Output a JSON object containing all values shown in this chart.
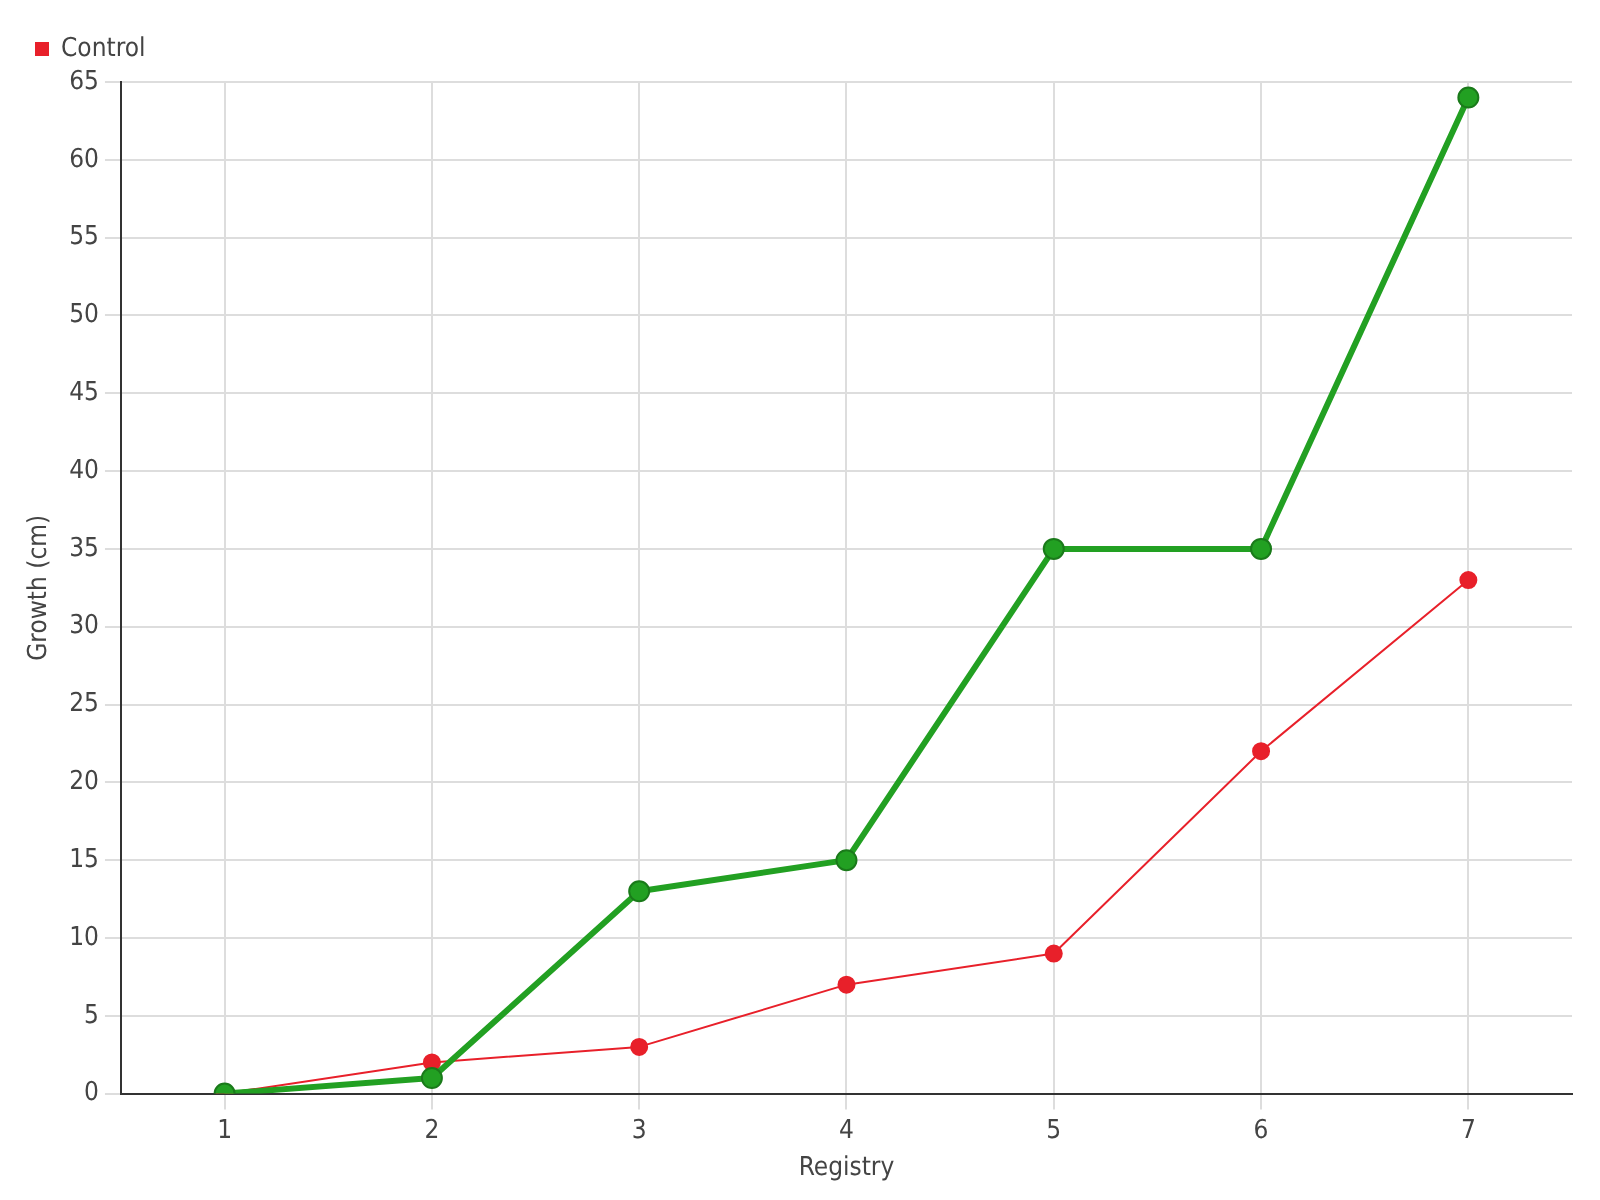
{
  "chart_data": {
    "type": "line",
    "xlabel": "Registry",
    "ylabel": "Growth (cm)",
    "categories": [
      "1",
      "2",
      "3",
      "4",
      "5",
      "6",
      "7"
    ],
    "series": [
      {
        "color": "#22a022",
        "values": [
          0,
          1,
          13,
          15,
          35,
          35,
          64
        ]
      },
      {
        "name": "Control",
        "color": "#e8202a",
        "values": [
          0,
          2,
          3,
          7,
          9,
          22,
          33
        ]
      }
    ],
    "ylim": [
      0,
      65
    ],
    "yticks": [
      0,
      5,
      10,
      15,
      20,
      25,
      30,
      35,
      40,
      45,
      50,
      55,
      60,
      65
    ],
    "grid": true,
    "legend": "top left",
    "marker": "circle",
    "line_style": "solid"
  }
}
